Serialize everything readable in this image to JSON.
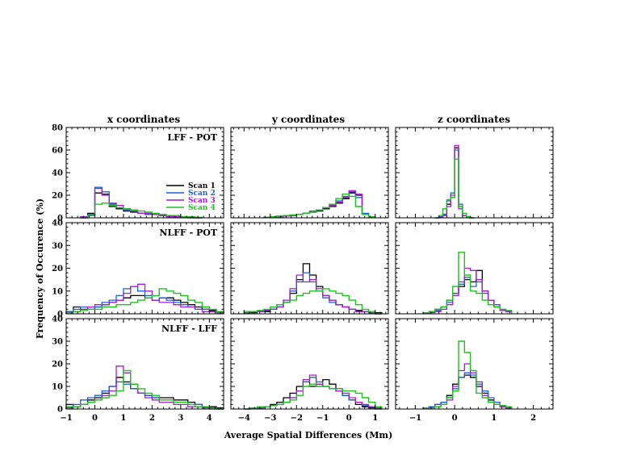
{
  "figure": {
    "column_titles": [
      "x coordinates",
      "y coordinates",
      "z coordinates"
    ],
    "xlabel": "Average Spatial Differences (Mm)",
    "ylabel": "Frequency of Occurence (%)",
    "legend": [
      "Scan 1",
      "Scan 2",
      "Scan 3",
      "Scan 4"
    ],
    "colors": {
      "Scan 1": "#000000",
      "Scan 2": "#1f5fd6",
      "Scan 3": "#a020d0",
      "Scan 4": "#20c020"
    }
  },
  "chart_data": [
    {
      "type": "histogram",
      "row": 0,
      "col": 0,
      "title": "LFF - POT",
      "xlim": [
        -1,
        4.5
      ],
      "ylim": [
        0,
        80
      ],
      "yticks": [
        0,
        20,
        40,
        60,
        80
      ],
      "xticks": [
        -1,
        0,
        1,
        2,
        3,
        4
      ],
      "bin_start": -0.5,
      "bin_width": 0.25,
      "series": [
        {
          "name": "Scan 1",
          "values": [
            0,
            4,
            22,
            21,
            10,
            8,
            6,
            5,
            4,
            3,
            3,
            2,
            2,
            1,
            1,
            0.5,
            0
          ]
        },
        {
          "name": "Scan 2",
          "values": [
            1,
            3,
            27,
            23,
            12,
            9,
            7,
            6,
            4,
            3,
            3,
            2,
            1,
            1,
            0.5,
            0,
            0
          ]
        },
        {
          "name": "Scan 3",
          "values": [
            1,
            2,
            26,
            20,
            13,
            11,
            8,
            6,
            4,
            4,
            3,
            2,
            1,
            1,
            0.5,
            0,
            0
          ]
        },
        {
          "name": "Scan 4",
          "values": [
            0,
            2,
            12,
            13,
            11,
            9,
            8,
            7,
            6,
            5,
            4,
            3,
            2,
            2,
            1,
            1,
            0.5
          ]
        }
      ]
    },
    {
      "type": "histogram",
      "row": 0,
      "col": 1,
      "xlim": [
        -4.5,
        1.5
      ],
      "ylim": [
        0,
        80
      ],
      "yticks": [
        0,
        20,
        40,
        60,
        80
      ],
      "xticks": [
        -4,
        -3,
        -2,
        -1,
        0,
        1
      ],
      "bin_start": -3.25,
      "bin_width": 0.25,
      "series": [
        {
          "name": "Scan 1",
          "values": [
            0.5,
            1,
            1,
            1.5,
            2,
            3,
            4,
            5,
            6,
            8,
            10,
            13,
            17,
            22,
            20,
            3,
            1
          ]
        },
        {
          "name": "Scan 2",
          "values": [
            0.5,
            1,
            1.5,
            2,
            2.5,
            3,
            4,
            5,
            7,
            9,
            12,
            15,
            19,
            23,
            18,
            4,
            1
          ]
        },
        {
          "name": "Scan 3",
          "values": [
            0.5,
            1,
            1,
            1.5,
            2,
            3,
            4,
            6,
            7,
            9,
            11,
            14,
            18,
            24,
            21,
            3,
            1
          ]
        },
        {
          "name": "Scan 4",
          "values": [
            0.5,
            1,
            1.5,
            2,
            2.5,
            3,
            4,
            5,
            7,
            9,
            12,
            17,
            21,
            19,
            10,
            3,
            1
          ]
        }
      ]
    },
    {
      "type": "histogram",
      "row": 0,
      "col": 2,
      "xlim": [
        -1.5,
        2.5
      ],
      "ylim": [
        0,
        80
      ],
      "yticks": [
        0,
        20,
        40,
        60,
        80
      ],
      "xticks": [
        -1,
        0,
        1,
        2
      ],
      "bin_start": -0.5,
      "bin_width": 0.1,
      "series": [
        {
          "name": "Scan 1",
          "values": [
            0,
            1,
            3,
            12,
            18,
            62,
            10,
            2,
            1,
            0
          ]
        },
        {
          "name": "Scan 2",
          "values": [
            0,
            1,
            2,
            15,
            22,
            60,
            12,
            2,
            1,
            0
          ]
        },
        {
          "name": "Scan 3",
          "values": [
            0,
            0.5,
            3,
            10,
            20,
            64,
            8,
            2,
            0.5,
            0
          ]
        },
        {
          "name": "Scan 4",
          "values": [
            0,
            2,
            8,
            16,
            18,
            52,
            10,
            4,
            1,
            0
          ]
        }
      ]
    },
    {
      "type": "histogram",
      "row": 1,
      "col": 0,
      "title": "NLFF - POT",
      "xlim": [
        -1,
        4.5
      ],
      "ylim": [
        0,
        40
      ],
      "yticks": [
        0,
        10,
        20,
        30,
        40
      ],
      "xticks": [
        -1,
        0,
        1,
        2,
        3,
        4
      ],
      "bin_start": -1,
      "bin_width": 0.25,
      "series": [
        {
          "name": "Scan 1",
          "values": [
            1,
            3,
            2,
            2,
            3,
            4,
            5,
            6,
            7,
            8,
            8,
            7,
            6,
            7,
            7,
            6,
            5,
            4,
            3,
            2,
            1.5,
            1
          ]
        },
        {
          "name": "Scan 2",
          "values": [
            1,
            2,
            3,
            2,
            3,
            5,
            6,
            8,
            11,
            12,
            10,
            8,
            6,
            7,
            6,
            5,
            4,
            3,
            2,
            2,
            1,
            0.5
          ]
        },
        {
          "name": "Scan 3",
          "values": [
            0.5,
            1,
            2,
            3,
            4,
            4,
            5,
            6,
            9,
            12,
            13,
            10,
            6,
            5,
            5,
            4,
            3,
            3,
            2,
            1,
            1,
            0.5
          ]
        },
        {
          "name": "Scan 4",
          "values": [
            0.5,
            1,
            1.5,
            2,
            2,
            3,
            3,
            4,
            4,
            5,
            6,
            7,
            8,
            11,
            10,
            9,
            8,
            6,
            5,
            3,
            2,
            1
          ]
        }
      ]
    },
    {
      "type": "histogram",
      "row": 1,
      "col": 1,
      "xlim": [
        -4.5,
        1.5
      ],
      "ylim": [
        0,
        40
      ],
      "yticks": [
        0,
        10,
        20,
        30,
        40
      ],
      "xticks": [
        -4,
        -3,
        -2,
        -1,
        0,
        1
      ],
      "bin_start": -4,
      "bin_width": 0.25,
      "series": [
        {
          "name": "Scan 1",
          "values": [
            0.5,
            0.5,
            1,
            1,
            2,
            3,
            5,
            9,
            15,
            22,
            17,
            12,
            8,
            6,
            4,
            3,
            2,
            1.5,
            1,
            0.5,
            0.5
          ]
        },
        {
          "name": "Scan 2",
          "values": [
            0.5,
            1,
            1,
            1.5,
            2,
            4,
            6,
            10,
            14,
            18,
            14,
            10,
            7,
            5,
            4,
            3,
            2,
            1,
            1,
            0.5,
            0
          ]
        },
        {
          "name": "Scan 3",
          "values": [
            0.5,
            1,
            1,
            1.5,
            2,
            3,
            6,
            11,
            17,
            14,
            15,
            11,
            8,
            6,
            4,
            3,
            2,
            1,
            1,
            0.5,
            0
          ]
        },
        {
          "name": "Scan 4",
          "values": [
            1,
            1,
            1.5,
            2,
            3,
            4,
            5,
            6,
            8,
            9,
            10,
            10,
            11,
            10,
            9,
            8,
            6,
            4,
            2,
            1,
            0
          ]
        }
      ]
    },
    {
      "type": "histogram",
      "row": 1,
      "col": 2,
      "xlim": [
        -1.5,
        2.5
      ],
      "ylim": [
        0,
        40
      ],
      "yticks": [
        0,
        10,
        20,
        30,
        40
      ],
      "xticks": [
        -1,
        0,
        1,
        2
      ],
      "bin_start": -0.8,
      "bin_width": 0.15,
      "series": [
        {
          "name": "Scan 1",
          "values": [
            0.5,
            1,
            2,
            3,
            6,
            9,
            12,
            15,
            14,
            19,
            10,
            6,
            3,
            1.5,
            1
          ]
        },
        {
          "name": "Scan 2",
          "values": [
            0.5,
            1,
            1.5,
            3,
            5,
            9,
            13,
            16,
            12,
            14,
            9,
            6,
            4,
            2,
            1
          ]
        },
        {
          "name": "Scan 3",
          "values": [
            0.5,
            0.5,
            1,
            2,
            4,
            8,
            14,
            20,
            19,
            15,
            10,
            6,
            3,
            1.5,
            1
          ]
        },
        {
          "name": "Scan 4",
          "values": [
            0.5,
            1,
            2,
            3,
            6,
            12,
            27,
            17,
            10,
            9,
            6,
            4,
            3,
            2,
            1.5
          ]
        }
      ]
    },
    {
      "type": "histogram",
      "row": 2,
      "col": 0,
      "title": "NLFF - LFF",
      "xlim": [
        -1,
        4.5
      ],
      "ylim": [
        0,
        40
      ],
      "yticks": [
        0,
        10,
        20,
        30,
        40
      ],
      "xticks": [
        -1,
        0,
        1,
        2,
        3,
        4
      ],
      "bin_start": -1,
      "bin_width": 0.25,
      "series": [
        {
          "name": "Scan 1",
          "values": [
            2,
            1,
            2,
            4,
            5,
            7,
            10,
            14,
            12,
            9,
            7,
            6,
            5,
            5,
            5,
            4,
            4,
            3,
            2,
            1,
            1,
            0.5
          ]
        },
        {
          "name": "Scan 2",
          "values": [
            1,
            2,
            4,
            5,
            6,
            8,
            10,
            12,
            11,
            9,
            7,
            6,
            5,
            4,
            4,
            3,
            3,
            2,
            2,
            1,
            0.5,
            0
          ]
        },
        {
          "name": "Scan 3",
          "values": [
            0.5,
            1,
            2,
            3,
            4,
            6,
            8,
            19,
            16,
            11,
            7,
            5,
            4,
            3,
            3,
            2,
            2,
            1,
            1,
            0.5,
            0,
            0
          ]
        },
        {
          "name": "Scan 4",
          "values": [
            1,
            1,
            2,
            3,
            4,
            5,
            6,
            8,
            17,
            11,
            9,
            7,
            6,
            4,
            4,
            3,
            3,
            2,
            1,
            1,
            0.5,
            0
          ]
        }
      ]
    },
    {
      "type": "histogram",
      "row": 2,
      "col": 1,
      "xlim": [
        -4.5,
        1.5
      ],
      "ylim": [
        0,
        40
      ],
      "yticks": [
        0,
        10,
        20,
        30,
        40
      ],
      "xticks": [
        -4,
        -3,
        -2,
        -1,
        0,
        1
      ],
      "bin_start": -4,
      "bin_width": 0.25,
      "series": [
        {
          "name": "Scan 1",
          "values": [
            0,
            0.5,
            0.5,
            1,
            2,
            3,
            5,
            7,
            10,
            12,
            10,
            11,
            13,
            11,
            9,
            6,
            4,
            2,
            1,
            0.5,
            0
          ]
        },
        {
          "name": "Scan 2",
          "values": [
            0,
            0.5,
            0.5,
            1,
            1.5,
            2,
            3,
            5,
            8,
            12,
            14,
            12,
            10,
            9,
            8,
            6,
            4,
            3,
            1.5,
            1,
            0.5
          ]
        },
        {
          "name": "Scan 3",
          "values": [
            0,
            0.5,
            0.5,
            1,
            1.5,
            2,
            3,
            5,
            8,
            13,
            15,
            11,
            10,
            9,
            8,
            7,
            5,
            3,
            2,
            1,
            0.5
          ]
        },
        {
          "name": "Scan 4",
          "values": [
            0,
            0.5,
            1,
            1,
            1.5,
            2,
            3,
            4,
            6,
            10,
            11,
            10,
            10,
            9,
            9,
            8,
            8,
            7,
            5,
            3,
            1
          ]
        }
      ]
    },
    {
      "type": "histogram",
      "row": 2,
      "col": 2,
      "xlim": [
        -1.5,
        2.5
      ],
      "ylim": [
        0,
        40
      ],
      "yticks": [
        0,
        10,
        20,
        30,
        40
      ],
      "xticks": [
        -1,
        0,
        1,
        2
      ],
      "bin_start": -0.8,
      "bin_width": 0.15,
      "series": [
        {
          "name": "Scan 1",
          "values": [
            0.5,
            1,
            2,
            3,
            6,
            11,
            14,
            15,
            14,
            10,
            7,
            4,
            2,
            1,
            0.5
          ]
        },
        {
          "name": "Scan 2",
          "values": [
            0.5,
            1,
            2,
            3,
            5,
            9,
            14,
            16,
            15,
            11,
            8,
            5,
            3,
            1.5,
            1
          ]
        },
        {
          "name": "Scan 3",
          "values": [
            0.5,
            0.5,
            1,
            2,
            4,
            10,
            17,
            20,
            16,
            12,
            6,
            3,
            2,
            1,
            0.5
          ]
        },
        {
          "name": "Scan 4",
          "values": [
            0.5,
            0.5,
            1,
            2,
            5,
            8,
            30,
            25,
            17,
            7,
            5,
            3,
            2,
            1.5,
            1
          ]
        }
      ]
    }
  ]
}
